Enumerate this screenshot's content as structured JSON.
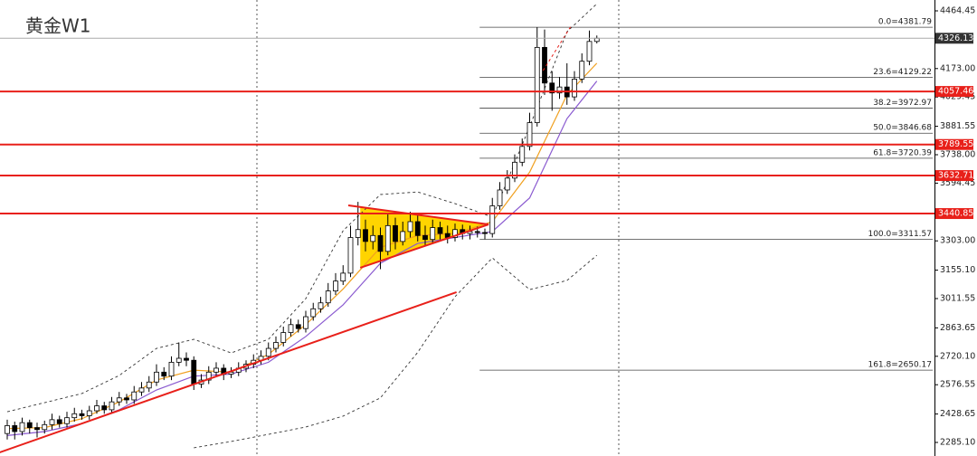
{
  "chart_data": {
    "type": "candlestick",
    "title": "黄金W1",
    "ylim": [
      2216.6,
      4519.3
    ],
    "yticks": [
      4464.45,
      4029.45,
      3881.55,
      3594.45,
      3011.55,
      2863.65,
      2576.55,
      2428.65,
      {
        "value": 4173,
        "label": "4173.00"
      },
      {
        "value": 3738,
        "label": "3738.00"
      },
      {
        "value": 3303,
        "label": "3303.00"
      },
      {
        "value": 3155.1,
        "label": "3155.10"
      },
      {
        "value": 2720.1,
        "label": "2720.10"
      },
      {
        "value": 2285.1,
        "label": "2285.10"
      }
    ],
    "up_color": "#ffffff",
    "down_color": "#000000",
    "open": [
      2330,
      2370,
      2340,
      2385,
      2360,
      2350,
      2375,
      2400,
      2380,
      2410,
      2430,
      2420,
      2445,
      2470,
      2450,
      2490,
      2510,
      2500,
      2540,
      2560,
      2590,
      2640,
      2620,
      2690,
      2710,
      2700,
      2580,
      2600,
      2640,
      2660,
      2630,
      2640,
      2660,
      2680,
      2700,
      2720,
      2760,
      2790,
      2840,
      2880,
      2860,
      2920,
      2960,
      2990,
      3050,
      3100,
      3140,
      3320,
      3360,
      3300,
      3330,
      3250,
      3380,
      3300,
      3350,
      3400,
      3330,
      3310,
      3370,
      3340,
      3320,
      3360,
      3340,
      3350,
      3345,
      3340,
      3480,
      3560,
      3620,
      3700,
      3780,
      3900,
      4280,
      4100,
      4050,
      4080,
      4030,
      4120,
      4210,
      4310
    ],
    "high": [
      2400,
      2390,
      2410,
      2400,
      2385,
      2395,
      2430,
      2420,
      2440,
      2460,
      2450,
      2470,
      2500,
      2490,
      2515,
      2540,
      2530,
      2570,
      2590,
      2620,
      2680,
      2665,
      2720,
      2790,
      2740,
      2720,
      2630,
      2670,
      2690,
      2680,
      2665,
      2690,
      2700,
      2730,
      2750,
      2790,
      2820,
      2870,
      2910,
      2905,
      2950,
      2990,
      3020,
      3090,
      3140,
      3180,
      3380,
      3500,
      3410,
      3380,
      3370,
      3440,
      3420,
      3400,
      3450,
      3440,
      3380,
      3410,
      3400,
      3380,
      3390,
      3385,
      3380,
      3375,
      3365,
      3520,
      3600,
      3660,
      3740,
      3820,
      3950,
      4381.79,
      4370,
      4160,
      4130,
      4200,
      4160,
      4250,
      4365,
      4340
    ],
    "low": [
      2300,
      2300,
      2320,
      2330,
      2310,
      2330,
      2350,
      2360,
      2360,
      2390,
      2400,
      2400,
      2430,
      2430,
      2430,
      2470,
      2480,
      2480,
      2520,
      2540,
      2570,
      2600,
      2600,
      2670,
      2670,
      2550,
      2560,
      2580,
      2620,
      2600,
      2610,
      2620,
      2640,
      2660,
      2680,
      2700,
      2740,
      2770,
      2820,
      2840,
      2840,
      2900,
      2940,
      2970,
      3030,
      3080,
      3120,
      3280,
      3250,
      3260,
      3160,
      3230,
      3260,
      3280,
      3320,
      3300,
      3280,
      3290,
      3310,
      3290,
      3300,
      3310,
      3310,
      3320,
      3310,
      3320,
      3460,
      3540,
      3600,
      3680,
      3760,
      3880,
      4040,
      3960,
      4020,
      3990,
      4010,
      4100,
      4190,
      4300
    ],
    "close": [
      2370,
      2340,
      2385,
      2360,
      2350,
      2375,
      2400,
      2380,
      2410,
      2430,
      2420,
      2445,
      2470,
      2450,
      2490,
      2510,
      2500,
      2540,
      2560,
      2590,
      2640,
      2620,
      2690,
      2710,
      2700,
      2580,
      2600,
      2640,
      2660,
      2630,
      2640,
      2660,
      2680,
      2700,
      2720,
      2760,
      2790,
      2840,
      2880,
      2860,
      2920,
      2960,
      2990,
      3050,
      3100,
      3140,
      3320,
      3360,
      3300,
      3330,
      3250,
      3380,
      3300,
      3350,
      3400,
      3330,
      3310,
      3370,
      3340,
      3320,
      3360,
      3340,
      3350,
      3345,
      3340,
      3480,
      3560,
      3620,
      3700,
      3780,
      3900,
      4280,
      4100,
      4050,
      4080,
      4030,
      4120,
      4210,
      4310,
      4326.13
    ],
    "indicators": [
      {
        "color": "#f0a020",
        "dash": false,
        "x": [
          0,
          5,
          10,
          15,
          20,
          25,
          30,
          35,
          40,
          45,
          50,
          55,
          60,
          65,
          70,
          75,
          79
        ],
        "values": [
          2355,
          2360,
          2405,
          2490,
          2600,
          2650,
          2640,
          2730,
          2880,
          3060,
          3270,
          3330,
          3340,
          3400,
          3650,
          4040,
          4200
        ]
      },
      {
        "color": "#8a5ad0",
        "dash": false,
        "x": [
          0,
          5,
          10,
          15,
          20,
          25,
          30,
          35,
          40,
          45,
          50,
          55,
          60,
          65,
          70,
          75,
          79
        ],
        "values": [
          2320,
          2340,
          2380,
          2450,
          2550,
          2620,
          2630,
          2690,
          2820,
          2980,
          3190,
          3290,
          3320,
          3350,
          3520,
          3920,
          4110
        ]
      },
      {
        "color": "#333333",
        "dash": true,
        "x": [
          0,
          5,
          10,
          15,
          20,
          25,
          30,
          35,
          40,
          45,
          50,
          55,
          60,
          65,
          70,
          75,
          79
        ],
        "values": [
          2440,
          2486,
          2532,
          2623,
          2760,
          2806,
          2737,
          2806,
          3011,
          3354,
          3537,
          3550,
          3491,
          3423,
          3880,
          4359,
          4500
        ]
      },
      {
        "color": "#333333",
        "dash": true,
        "x": [
          0,
          5,
          10,
          15,
          20,
          25,
          30,
          35,
          40,
          45,
          50,
          55,
          60,
          65,
          70,
          75,
          79
        ],
        "values": [
          null,
          null,
          null,
          null,
          null,
          2258,
          2290,
          2326,
          2363,
          2418,
          2510,
          2740,
          3021,
          3217,
          3057,
          3103,
          3230
        ]
      }
    ],
    "trendlines": [
      {
        "color": "#e8201a",
        "dash": false,
        "x": [
          -1,
          60.2
        ],
        "values": [
          2235,
          3044
        ]
      },
      {
        "color": "#e8201a",
        "dash": false,
        "x": [
          45.7,
          64.5
        ],
        "values": [
          3482,
          3386
        ]
      },
      {
        "color": "#e8201a",
        "dash": false,
        "x": [
          47.3,
          64.5
        ],
        "values": [
          3167,
          3386
        ]
      },
      {
        "color": "#e8201a",
        "dash": true,
        "x": [
          71.8,
          75.6
        ],
        "values": [
          4163,
          4391
        ]
      }
    ],
    "pattern": {
      "color": "#ffd400",
      "x": [
        47.3,
        64.5,
        47.3
      ],
      "values": [
        3474,
        3386,
        3167
      ]
    },
    "levels": [
      {
        "value": 4057.46,
        "color": "#e8201a"
      },
      {
        "value": 3789.55,
        "color": "#e8201a"
      },
      {
        "value": 3632.71,
        "color": "#e8201a"
      },
      {
        "value": 3440.85,
        "color": "#e8201a"
      }
    ],
    "current_price": {
      "value": 4326.13,
      "color": "#aaaaaa",
      "box_color": "#333333"
    },
    "fib_start_x": 63.3,
    "fibonacci": [
      {
        "label": "0.0=4381.79",
        "value": 4381.79
      },
      {
        "label": "23.6=4129.22",
        "value": 4129.22
      },
      {
        "label": "38.2=3972.97",
        "value": 3972.97
      },
      {
        "label": "50.0=3846.68",
        "value": 3846.68
      },
      {
        "label": "61.8=3720.39",
        "value": 3720.39
      },
      {
        "label": "100.0=3311.57",
        "value": 3311.57
      },
      {
        "label": "161.8=2650.17",
        "value": 2650.17
      }
    ]
  }
}
